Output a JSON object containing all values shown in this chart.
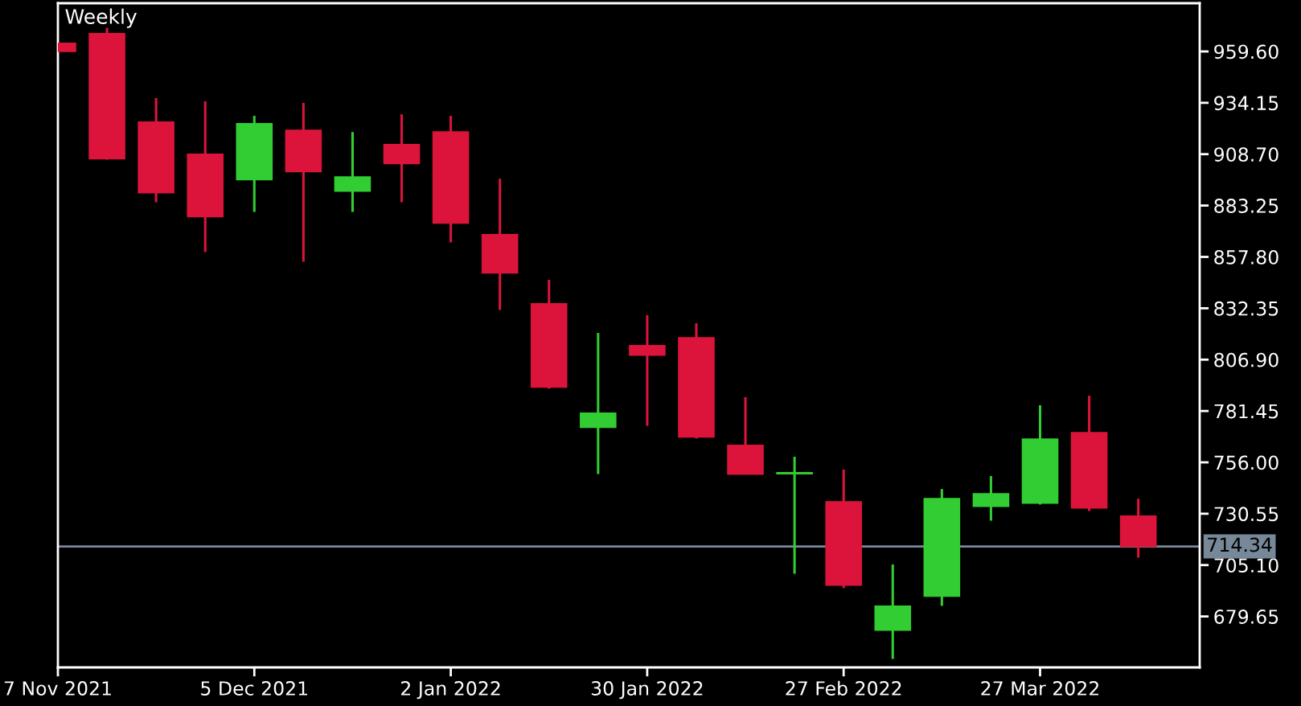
{
  "chart_data": {
    "type": "candlestick",
    "title": "Weekly",
    "x": [
      "2021-11-07",
      "2021-11-14",
      "2021-11-21",
      "2021-11-28",
      "2021-12-05",
      "2021-12-12",
      "2021-12-19",
      "2021-12-26",
      "2022-01-02",
      "2022-01-09",
      "2022-01-16",
      "2022-01-23",
      "2022-01-30",
      "2022-02-06",
      "2022-02-13",
      "2022-02-20",
      "2022-02-27",
      "2022-03-06",
      "2022-03-13",
      "2022-03-20",
      "2022-03-27",
      "2022-04-03",
      "2022-04-10"
    ],
    "ohlc": [
      [
        963.6,
        963.6,
        959.7,
        959.7
      ],
      [
        968.4,
        971.3,
        906.0,
        906.5
      ],
      [
        924.5,
        936.5,
        884.9,
        889.7
      ],
      [
        908.6,
        934.9,
        860.2,
        877.8
      ],
      [
        896.1,
        927.7,
        880.1,
        923.7
      ],
      [
        920.5,
        934.1,
        855.4,
        900.1
      ],
      [
        890.5,
        919.7,
        880.1,
        897.4
      ],
      [
        913.4,
        928.5,
        884.9,
        904.1
      ],
      [
        919.7,
        927.7,
        865.0,
        874.6
      ],
      [
        868.8,
        896.6,
        831.5,
        849.9
      ],
      [
        834.5,
        846.4,
        792.5,
        793.3
      ],
      [
        773.4,
        820.1,
        750.2,
        780.3
      ],
      [
        813.8,
        828.9,
        774.1,
        809.2
      ],
      [
        817.7,
        824.9,
        767.8,
        768.6
      ],
      [
        764.4,
        788.3,
        750.0,
        750.2
      ],
      [
        750.4,
        758.8,
        700.8,
        750.8
      ],
      [
        736.4,
        752.4,
        693.7,
        695.2
      ],
      [
        672.9,
        705.4,
        658.6,
        684.7
      ],
      [
        689.7,
        742.8,
        684.9,
        738.0
      ],
      [
        734.3,
        749.2,
        727.1,
        740.4
      ],
      [
        735.9,
        784.3,
        735.1,
        767.5
      ],
      [
        770.7,
        789.0,
        731.9,
        733.5
      ],
      [
        729.3,
        738.0,
        708.8,
        714.34
      ]
    ],
    "colors": [
      "#dc143c",
      "#dc143c",
      "#dc143c",
      "#dc143c",
      "#32cd32",
      "#dc143c",
      "#32cd32",
      "#dc143c",
      "#dc143c",
      "#dc143c",
      "#dc143c",
      "#32cd32",
      "#dc143c",
      "#dc143c",
      "#dc143c",
      "#32cd32",
      "#dc143c",
      "#32cd32",
      "#32cd32",
      "#32cd32",
      "#32cd32",
      "#dc143c",
      "#dc143c"
    ],
    "xlim": [
      "2021-11-07",
      "2022-04-18T18:00"
    ],
    "xticks": [
      {
        "value": "2021-11-07",
        "label": "7 Nov 2021"
      },
      {
        "value": "2021-12-05",
        "label": "5 Dec 2021"
      },
      {
        "value": "2022-01-02",
        "label": "2 Jan 2022"
      },
      {
        "value": "2022-01-30",
        "label": "30 Jan 2022"
      },
      {
        "value": "2022-02-27",
        "label": "27 Feb 2022"
      },
      {
        "value": "2022-03-27",
        "label": "27 Mar 2022"
      }
    ],
    "ylim": [
      654.4,
      983.5
    ],
    "yticks": [
      {
        "value": 959.6,
        "label": "959.60"
      },
      934.15,
      {
        "value": 908.7,
        "label": "908.70"
      },
      883.25,
      {
        "value": 857.8,
        "label": "857.80"
      },
      832.35,
      {
        "value": 806.9,
        "label": "806.90"
      },
      781.45,
      {
        "value": 756.0,
        "label": "756.00"
      },
      730.55,
      {
        "value": 705.1,
        "label": "705.10"
      },
      679.65
    ],
    "ref_lines": [
      {
        "axis": "y",
        "value": 714.34,
        "label": "714.34",
        "color": "#778899"
      }
    ]
  }
}
